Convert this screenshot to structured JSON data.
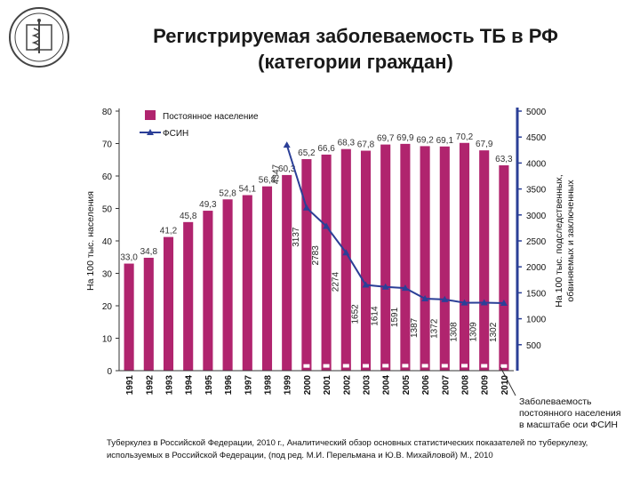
{
  "slide": {
    "title_line1": "Регистрируемая заболеваемость ТБ в РФ",
    "title_line2": "(категории граждан)",
    "footnote_line1": "Туберкулез в Российской Федерации, 2010 г., Аналитический обзор основных статистических показателей по туберкулезу,",
    "footnote_line2": "используемых в Российской Федерации, (под ред. М.И. Перельмана и Ю.В. Михайловой) М., 2010"
  },
  "chart_data": {
    "type": "bar",
    "categories": [
      "1991",
      "1992",
      "1993",
      "1994",
      "1995",
      "1996",
      "1997",
      "1998",
      "1999",
      "2000",
      "2001",
      "2002",
      "2003",
      "2004",
      "2005",
      "2006",
      "2007",
      "2008",
      "2009",
      "2010"
    ],
    "series": [
      {
        "name": "Постоянное население",
        "kind": "bar",
        "axis": "left",
        "color": "#b0246e",
        "values": [
          33.0,
          34.8,
          41.2,
          45.8,
          49.3,
          52.8,
          54.1,
          56.8,
          60.3,
          65.2,
          66.6,
          68.3,
          67.8,
          69.7,
          69.9,
          69.2,
          69.1,
          70.2,
          67.9,
          63.3
        ],
        "labels": [
          "33,0",
          "34,8",
          "41,2",
          "45,8",
          "49,3",
          "52,8",
          "54,1",
          "56,8",
          "60,3",
          "65,2",
          "66,6",
          "68,3",
          "67,8",
          "69,7",
          "69,9",
          "69,2",
          "69,1",
          "70,2",
          "67,9",
          "63,3"
        ]
      },
      {
        "name": "ФСИН",
        "kind": "line",
        "axis": "right",
        "color": "#2b3f97",
        "x": [
          "1999",
          "2000",
          "2001",
          "2002",
          "2003",
          "2004",
          "2005",
          "2006",
          "2007",
          "2008",
          "2009",
          "2010"
        ],
        "values": [
          4347,
          3137,
          2783,
          2274,
          1652,
          1614,
          1591,
          1387,
          1372,
          1308,
          1309,
          1302
        ],
        "labels": [
          "4347",
          "3137",
          "2783",
          "2274",
          "1652",
          "1614",
          "1591",
          "1387",
          "1372",
          "1308",
          "1309",
          "1302"
        ]
      }
    ],
    "left_axis": {
      "label": "На 100 тыс. населения",
      "ylim": [
        0,
        80
      ],
      "ticks": [
        "0",
        "10",
        "20",
        "30",
        "40",
        "50",
        "60",
        "70",
        "80"
      ]
    },
    "right_axis": {
      "label_line1": "На 100 тыс. подследственных,",
      "label_line2": "обвиняемых и заключенных",
      "ylim": [
        0,
        5000
      ],
      "ticks": [
        "500",
        "1000",
        "1500",
        "2000",
        "2500",
        "3000",
        "3500",
        "4000",
        "4500",
        "5000"
      ],
      "color": "#2b3f97"
    },
    "legend": {
      "position": "top-left"
    },
    "annotation": {
      "line1": "Заболеваемость",
      "line2": "постоянного населения",
      "line3": "в масштабе оси ФСИН"
    },
    "grid": false
  }
}
